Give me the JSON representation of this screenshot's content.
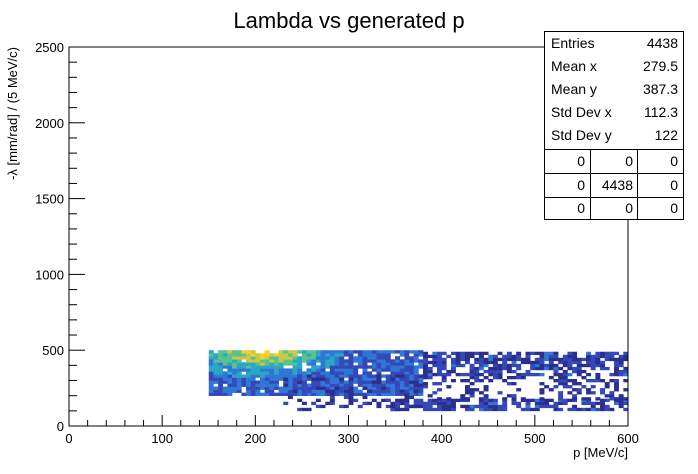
{
  "chart_data": {
    "type": "heatmap",
    "title": "Lambda vs generated p",
    "xlabel": "p [MeV/c]",
    "ylabel": "-λ [mm/rad] / (5 MeV/c)",
    "xlim": [
      0,
      600
    ],
    "ylim": [
      0,
      2500
    ],
    "x_ticks": [
      0,
      100,
      200,
      300,
      400,
      500,
      600
    ],
    "y_ticks": [
      0,
      500,
      1000,
      1500,
      2000,
      2500
    ],
    "colormap": [
      "#2a2f8f",
      "#3548b7",
      "#2f76d6",
      "#2aa7c7",
      "#5cc18a",
      "#c7c94a",
      "#f3d325"
    ],
    "bin_width_x": 5,
    "bin_width_y": 20,
    "regions": [
      {
        "x": [
          150,
          380
        ],
        "y": [
          200,
          490
        ],
        "density": "high"
      },
      {
        "x": [
          380,
          600
        ],
        "y": [
          330,
          490
        ],
        "density": "medium"
      },
      {
        "x": [
          340,
          600
        ],
        "y": [
          100,
          170
        ],
        "density": "medium"
      },
      {
        "x": [
          230,
          380
        ],
        "y": [
          100,
          330
        ],
        "density": "sparse"
      },
      {
        "x": [
          380,
          600
        ],
        "y": [
          170,
          330
        ],
        "density": "sparse"
      }
    ],
    "hotspot": {
      "x": 205,
      "y": 480
    },
    "stats": {
      "title": "",
      "entries": {
        "label": "Entries",
        "value": "4438"
      },
      "mean_x": {
        "label": "Mean x",
        "value": "279.5"
      },
      "mean_y": {
        "label": "Mean y",
        "value": "387.3"
      },
      "std_x": {
        "label": "Std Dev x",
        "value": "112.3"
      },
      "std_y": {
        "label": "Std Dev y",
        "value": "122"
      },
      "grid": [
        [
          "0",
          "0",
          "0"
        ],
        [
          "0",
          "4438",
          "0"
        ],
        [
          "0",
          "0",
          "0"
        ]
      ]
    }
  }
}
